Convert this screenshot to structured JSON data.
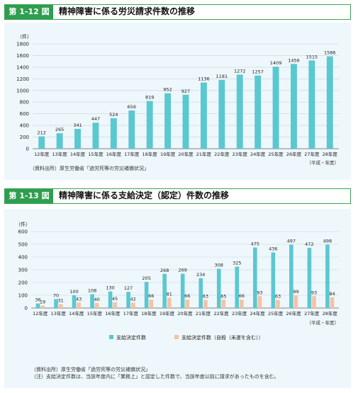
{
  "figures": [
    {
      "tag": "第 1-12 図",
      "title": "精神障害に係る労災請求件数の推移",
      "source": "（資料出所）厚生労働省「過労死等の労災補償状況」",
      "unit_note": "（平成・年度）"
    },
    {
      "tag": "第 1-13 図",
      "title": "精神障害に係る支給決定（認定）件数の推移",
      "unit_note": "（平成・年度）",
      "notes": [
        "（資料出所）厚生労働省「過労死等の労災補償状況」",
        "（注）支給決定件数は、当該年度内に「業務上」と認定した件数で、当該年度以前に請求があったものを含む。"
      ]
    }
  ],
  "colors": {
    "accent": "#2e9e4f",
    "bar_primary": "#5ac8d0",
    "bar_secondary": "#f6c2a4",
    "panel_bg": "#eef7fb"
  },
  "chart_data": [
    {
      "type": "bar",
      "ylabel": "（件）",
      "ylim": [
        0,
        1800
      ],
      "yticks": [
        0,
        200,
        400,
        600,
        800,
        1000,
        1200,
        1400,
        1600,
        1800
      ],
      "grid": true,
      "categories": [
        "12年度",
        "13年度",
        "14年度",
        "15年度",
        "16年度",
        "17年度",
        "18年度",
        "19年度",
        "20年度",
        "21年度",
        "22年度",
        "23年度",
        "24年度",
        "25年度",
        "26年度",
        "27年度",
        "28年度"
      ],
      "series": [
        {
          "values": [
            212,
            265,
            341,
            447,
            524,
            656,
            819,
            952,
            927,
            1136,
            1181,
            1272,
            1257,
            1409,
            1456,
            1515,
            1586
          ],
          "color": "#5ac8d0"
        }
      ]
    },
    {
      "type": "bar",
      "ylabel": "（件）",
      "ylim": [
        0,
        600
      ],
      "yticks": [
        0,
        100,
        200,
        300,
        400,
        500,
        600
      ],
      "grid": true,
      "legend_position": "bottom",
      "categories": [
        "12年度",
        "13年度",
        "14年度",
        "15年度",
        "16年度",
        "17年度",
        "18年度",
        "19年度",
        "20年度",
        "21年度",
        "22年度",
        "23年度",
        "24年度",
        "25年度",
        "26年度",
        "27年度",
        "28年度"
      ],
      "series": [
        {
          "name": "支給決定件数",
          "values": [
            36,
            70,
            100,
            108,
            130,
            127,
            205,
            268,
            269,
            234,
            308,
            325,
            475,
            436,
            497,
            472,
            498
          ],
          "color": "#5ac8d0"
        },
        {
          "name": "支給決定件数（自殺（未遂を含む））",
          "values": [
            19,
            31,
            43,
            40,
            45,
            42,
            66,
            81,
            66,
            63,
            65,
            66,
            93,
            63,
            99,
            93,
            84
          ],
          "color": "#f6c2a4"
        }
      ]
    }
  ]
}
